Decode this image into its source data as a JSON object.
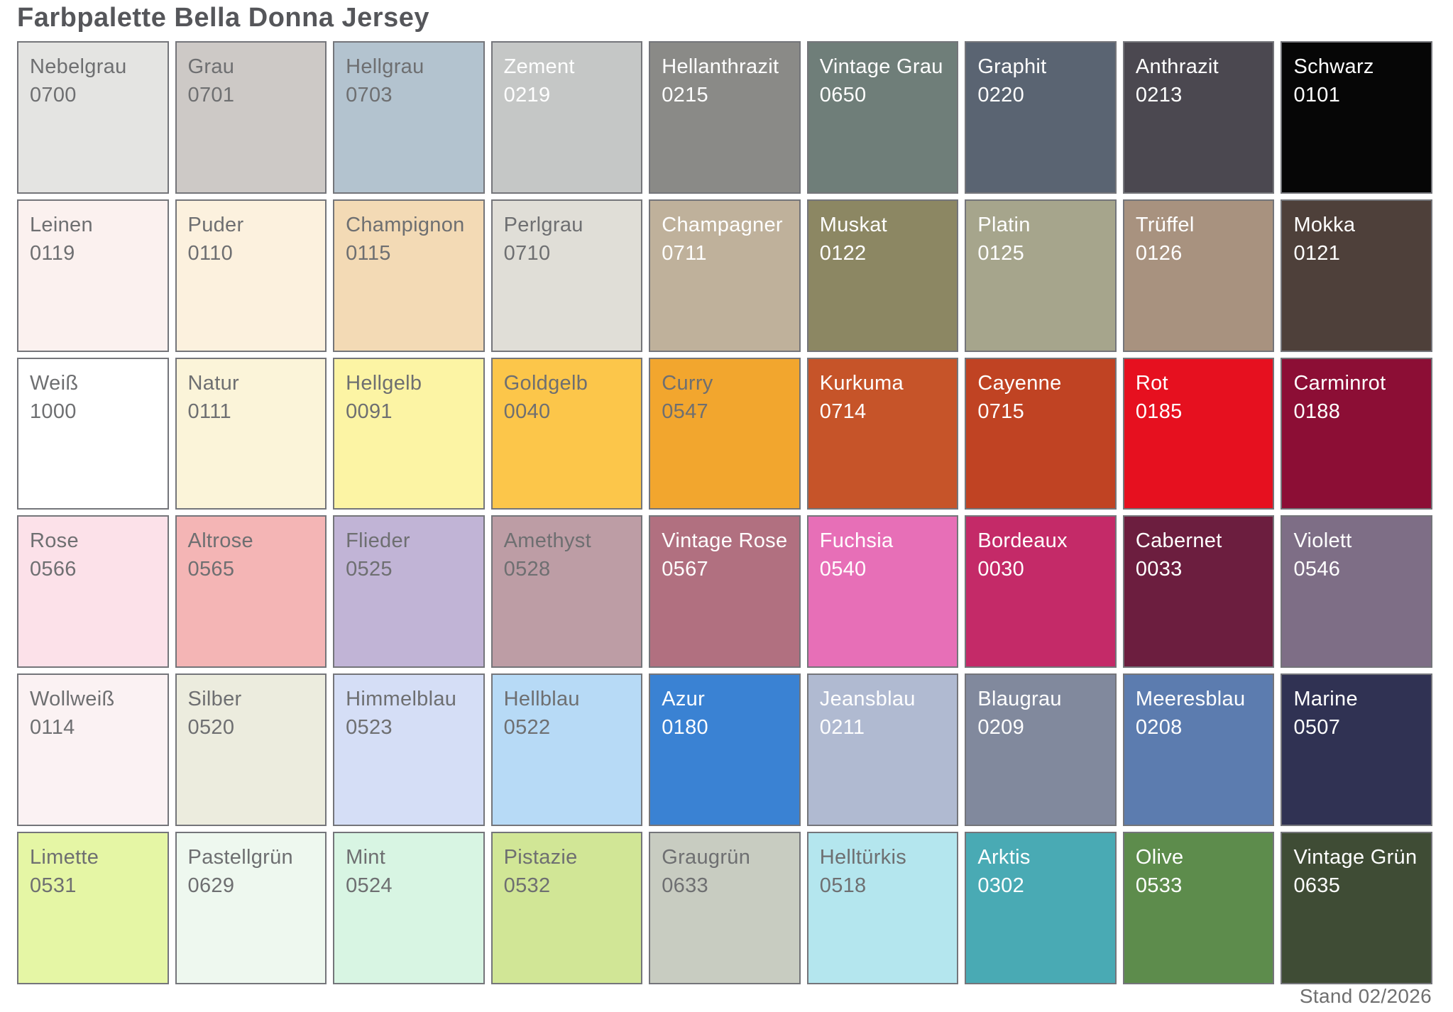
{
  "title": "Farbpalette Bella Donna Jersey",
  "footer": "Stand 02/2026",
  "palette_meta": {
    "columns": 9,
    "rows": 6,
    "border_color": "#74757a",
    "text_colors": {
      "dark": "#6e6f71",
      "light": "#ffffff"
    }
  },
  "swatches": [
    {
      "name": "Nebelgrau",
      "code": "0700",
      "bg": "#e4e4e2",
      "text": "dark"
    },
    {
      "name": "Grau",
      "code": "0701",
      "bg": "#cdc9c6",
      "text": "dark"
    },
    {
      "name": "Hellgrau",
      "code": "0703",
      "bg": "#b3c3cf",
      "text": "dark"
    },
    {
      "name": "Zement",
      "code": "0219",
      "bg": "#c5c7c6",
      "text": "light"
    },
    {
      "name": "Hellanthrazit",
      "code": "0215",
      "bg": "#8a8a87",
      "text": "light"
    },
    {
      "name": "Vintage Grau",
      "code": "0650",
      "bg": "#6f7e79",
      "text": "light"
    },
    {
      "name": "Graphit",
      "code": "0220",
      "bg": "#5a6472",
      "text": "light"
    },
    {
      "name": "Anthrazit",
      "code": "0213",
      "bg": "#4b4850",
      "text": "light"
    },
    {
      "name": "Schwarz",
      "code": "0101",
      "bg": "#060606",
      "text": "light"
    },
    {
      "name": "Leinen",
      "code": "0119",
      "bg": "#fbf1ef",
      "text": "dark"
    },
    {
      "name": "Puder",
      "code": "0110",
      "bg": "#fcf1de",
      "text": "dark"
    },
    {
      "name": "Champignon",
      "code": "0115",
      "bg": "#f3dab5",
      "text": "dark"
    },
    {
      "name": "Perlgrau",
      "code": "0710",
      "bg": "#e0ded7",
      "text": "dark"
    },
    {
      "name": "Champagner",
      "code": "0711",
      "bg": "#bfb19b",
      "text": "light"
    },
    {
      "name": "Muskat",
      "code": "0122",
      "bg": "#8c8763",
      "text": "light"
    },
    {
      "name": "Platin",
      "code": "0125",
      "bg": "#a6a58c",
      "text": "light"
    },
    {
      "name": "Trüffel",
      "code": "0126",
      "bg": "#a8927f",
      "text": "light"
    },
    {
      "name": "Mokka",
      "code": "0121",
      "bg": "#4e403a",
      "text": "light"
    },
    {
      "name": "Weiß",
      "code": "1000",
      "bg": "#ffffff",
      "text": "dark"
    },
    {
      "name": "Natur",
      "code": "0111",
      "bg": "#fbf4d9",
      "text": "dark"
    },
    {
      "name": "Hellgelb",
      "code": "0091",
      "bg": "#fcf4a4",
      "text": "dark"
    },
    {
      "name": "Goldgelb",
      "code": "0040",
      "bg": "#fcc64a",
      "text": "dark"
    },
    {
      "name": "Curry",
      "code": "0547",
      "bg": "#f2a62e",
      "text": "dark"
    },
    {
      "name": "Kurkuma",
      "code": "0714",
      "bg": "#c65429",
      "text": "light"
    },
    {
      "name": "Cayenne",
      "code": "0715",
      "bg": "#c04323",
      "text": "light"
    },
    {
      "name": "Rot",
      "code": "0185",
      "bg": "#e6101f",
      "text": "light"
    },
    {
      "name": "Carminrot",
      "code": "0188",
      "bg": "#8c0e35",
      "text": "light"
    },
    {
      "name": "Rose",
      "code": "0566",
      "bg": "#fce1e9",
      "text": "dark"
    },
    {
      "name": "Altrose",
      "code": "0565",
      "bg": "#f4b5b5",
      "text": "dark"
    },
    {
      "name": "Flieder",
      "code": "0525",
      "bg": "#c1b4d6",
      "text": "dark"
    },
    {
      "name": "Amethyst",
      "code": "0528",
      "bg": "#bd9da5",
      "text": "dark"
    },
    {
      "name": "Vintage Rose",
      "code": "0567",
      "bg": "#b17080",
      "text": "light"
    },
    {
      "name": "Fuchsia",
      "code": "0540",
      "bg": "#e76fb7",
      "text": "light"
    },
    {
      "name": "Bordeaux",
      "code": "0030",
      "bg": "#c42a68",
      "text": "light"
    },
    {
      "name": "Cabernet",
      "code": "0033",
      "bg": "#6c1e3f",
      "text": "light"
    },
    {
      "name": "Violett",
      "code": "0546",
      "bg": "#7e6e86",
      "text": "light"
    },
    {
      "name": "Wollweiß",
      "code": "0114",
      "bg": "#fbf2f3",
      "text": "dark"
    },
    {
      "name": "Silber",
      "code": "0520",
      "bg": "#ececde",
      "text": "dark"
    },
    {
      "name": "Himmelblau",
      "code": "0523",
      "bg": "#d5def6",
      "text": "dark"
    },
    {
      "name": "Hellblau",
      "code": "0522",
      "bg": "#b7daf6",
      "text": "dark"
    },
    {
      "name": "Azur",
      "code": "0180",
      "bg": "#3a82d3",
      "text": "light"
    },
    {
      "name": "Jeansblau",
      "code": "0211",
      "bg": "#b0bad1",
      "text": "light"
    },
    {
      "name": "Blaugrau",
      "code": "0209",
      "bg": "#81899d",
      "text": "light"
    },
    {
      "name": "Meeresblau",
      "code": "0208",
      "bg": "#5c7caf",
      "text": "light"
    },
    {
      "name": "Marine",
      "code": "0507",
      "bg": "#303253",
      "text": "light"
    },
    {
      "name": "Limette",
      "code": "0531",
      "bg": "#e5f6a5",
      "text": "dark"
    },
    {
      "name": "Pastellgrün",
      "code": "0629",
      "bg": "#eef8ef",
      "text": "dark"
    },
    {
      "name": "Mint",
      "code": "0524",
      "bg": "#d8f5e3",
      "text": "dark"
    },
    {
      "name": "Pistazie",
      "code": "0532",
      "bg": "#d1e696",
      "text": "dark"
    },
    {
      "name": "Graugrün",
      "code": "0633",
      "bg": "#c8ccc1",
      "text": "dark"
    },
    {
      "name": "Helltürkis",
      "code": "0518",
      "bg": "#b4e6ee",
      "text": "dark"
    },
    {
      "name": "Arktis",
      "code": "0302",
      "bg": "#49aab4",
      "text": "light"
    },
    {
      "name": "Olive",
      "code": "0533",
      "bg": "#5d8c4c",
      "text": "light"
    },
    {
      "name": "Vintage Grün",
      "code": "0635",
      "bg": "#3f4c35",
      "text": "light"
    }
  ]
}
